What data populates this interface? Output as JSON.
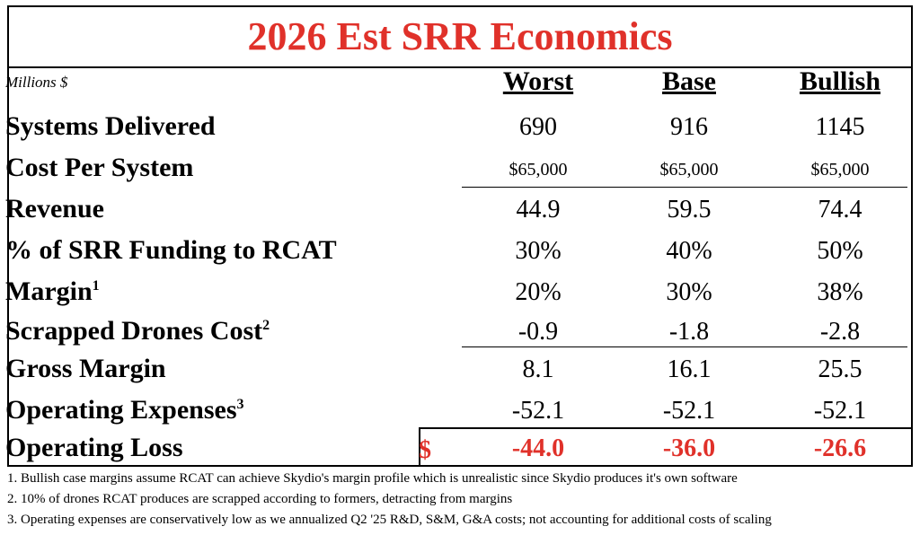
{
  "title": "2026 Est SRR Economics",
  "units_label": "Millions $",
  "columns": [
    "Worst",
    "Base",
    "Bullish"
  ],
  "rows": [
    {
      "label": "Systems Delivered",
      "sup": "",
      "values": [
        "690",
        "916",
        "1145"
      ]
    },
    {
      "label": "Cost Per System",
      "sup": "",
      "values": [
        "$65,000",
        "$65,000",
        "$65,000"
      ]
    },
    {
      "label": "Revenue",
      "sup": "",
      "values": [
        "44.9",
        "59.5",
        "74.4"
      ]
    },
    {
      "label": "% of SRR Funding to RCAT",
      "sup": "",
      "values": [
        "30%",
        "40%",
        "50%"
      ]
    },
    {
      "label": "Margin",
      "sup": "1",
      "values": [
        "20%",
        "30%",
        "38%"
      ]
    },
    {
      "label": "Scrapped Drones Cost",
      "sup": "2",
      "values": [
        "-0.9",
        "-1.8",
        "-2.8"
      ]
    },
    {
      "label": "Gross Margin",
      "sup": "",
      "values": [
        "8.1",
        "16.1",
        "25.5"
      ]
    },
    {
      "label": "Operating Expenses",
      "sup": "3",
      "values": [
        "-52.1",
        "-52.1",
        "-52.1"
      ]
    },
    {
      "label": "Operating Loss",
      "sup": "",
      "values": [
        "-44.0",
        "-36.0",
        "-26.6"
      ],
      "currency": "$"
    }
  ],
  "footnotes": [
    "1. Bullish case margins assume RCAT can achieve Skydio's margin profile which is unrealistic since Skydio produces it's own software",
    "2. 10% of drones RCAT produces are scrapped according to formers, detracting from margins",
    "3. Operating expenses are conservatively low as we annualized Q2 '25 R&D, S&M, G&A costs; not accounting for additional costs of scaling"
  ],
  "colors": {
    "accent": "#e0312a",
    "text": "#000000"
  }
}
